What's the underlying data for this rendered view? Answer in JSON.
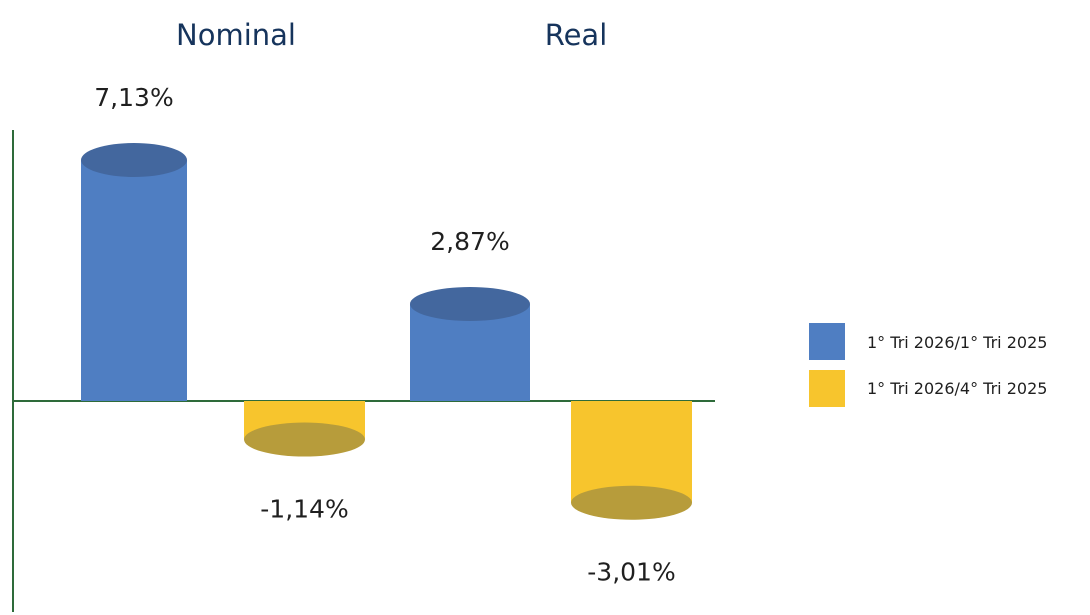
{
  "chart_data": {
    "type": "bar",
    "categories": [
      "Nominal",
      "Real"
    ],
    "series": [
      {
        "name": "1° Tri 2026/1° Tri 2025",
        "values": [
          7.13,
          2.87
        ],
        "labels": [
          "7,13%",
          "2,87%"
        ],
        "color": "#4f7ec2",
        "cap_color": "#43679e"
      },
      {
        "name": "1° Tri 2026/4° Tri 2025",
        "values": [
          -1.14,
          -3.01
        ],
        "labels": [
          "-1,14%",
          "-3,01%"
        ],
        "color": "#f7c52d",
        "cap_color": "#b79c3b"
      }
    ],
    "legend_position": "right",
    "grid": false,
    "axis_color": "#2e6b3a",
    "ylim": [
      -4.5,
      8
    ]
  }
}
